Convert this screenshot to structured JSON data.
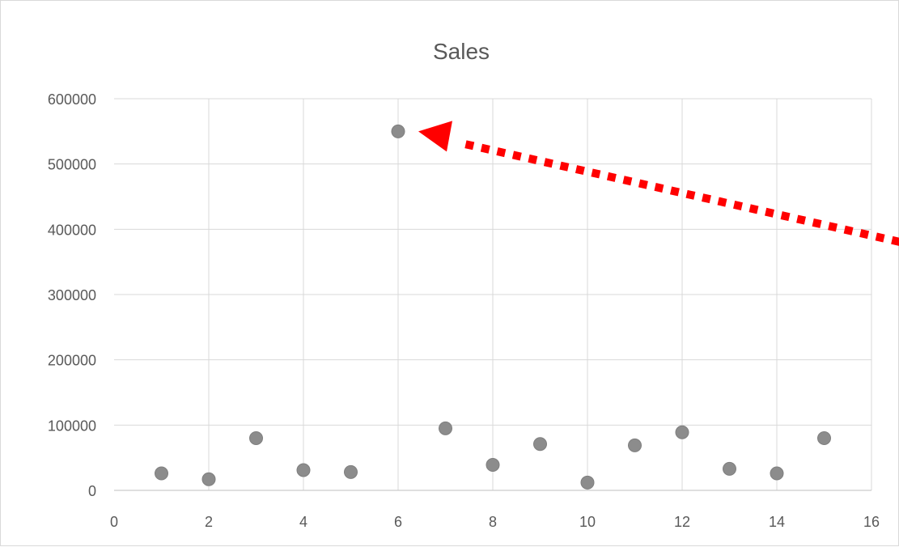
{
  "chart_data": {
    "type": "scatter",
    "title": "Sales",
    "xlabel": "",
    "ylabel": "",
    "xlim": [
      0,
      16
    ],
    "ylim": [
      0,
      600000
    ],
    "x_ticks": [
      0,
      2,
      4,
      6,
      8,
      10,
      12,
      14,
      16
    ],
    "y_ticks": [
      0,
      100000,
      200000,
      300000,
      400000,
      500000,
      600000
    ],
    "grid": true,
    "legend": "none",
    "colors": {
      "points": "#8c8c8c",
      "annotation": "#ff0000",
      "grid": "#d9d9d9",
      "text": "#595959"
    },
    "series": [
      {
        "x": [
          1,
          2,
          3,
          4,
          5,
          6,
          7,
          8,
          9,
          10,
          11,
          12,
          13,
          14,
          15
        ],
        "y": [
          26000,
          17000,
          80000,
          31000,
          28000,
          550000,
          95000,
          39000,
          71000,
          12000,
          69000,
          89000,
          33000,
          26000,
          80000
        ]
      }
    ],
    "annotations": [
      {
        "type": "dashed-arrow",
        "color": "#ff0000",
        "points_to": {
          "x": 6,
          "y": 550000
        }
      }
    ]
  }
}
